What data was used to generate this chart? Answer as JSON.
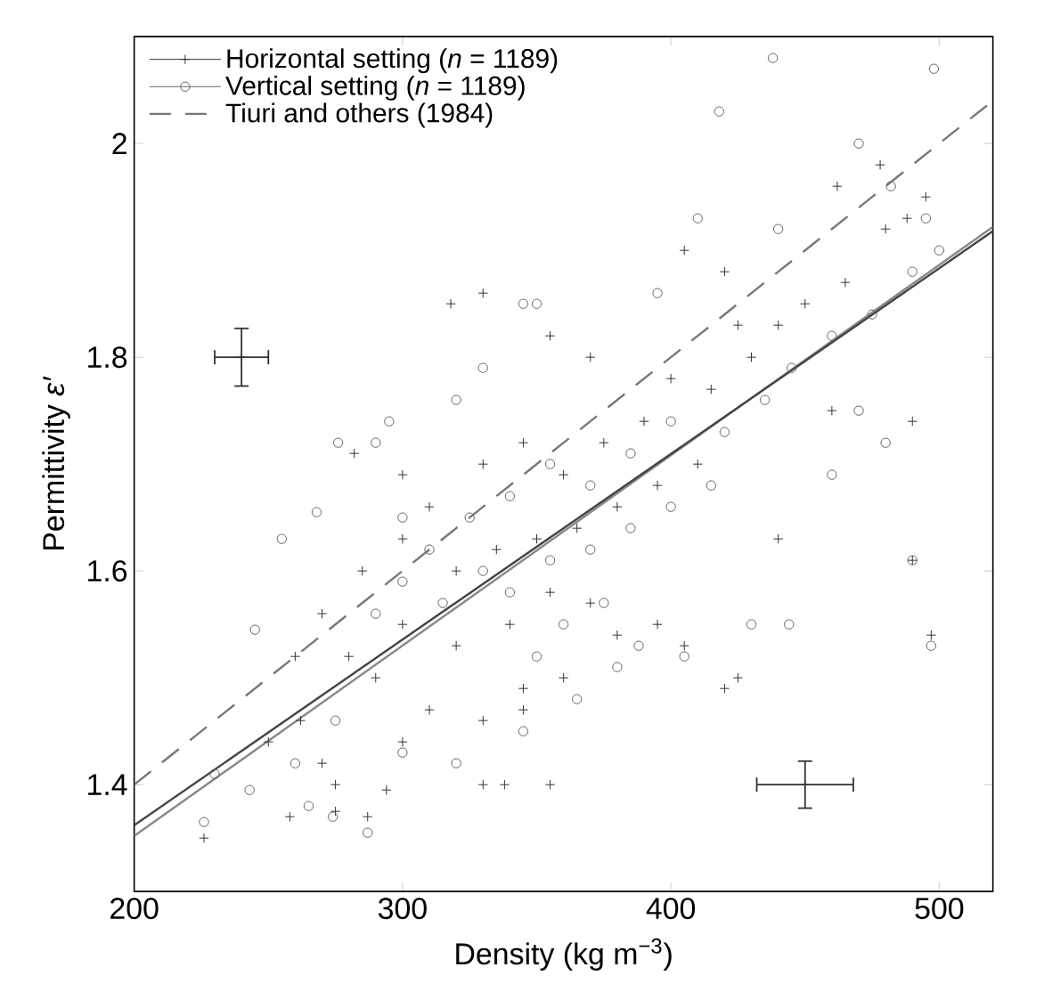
{
  "chart_data": {
    "type": "scatter",
    "xlabel": "Density (kg m$^{−3}$)",
    "ylabel": "Permittivity *ε′*",
    "xlim": [
      200,
      520
    ],
    "ylim": [
      1.3,
      2.1
    ],
    "xticks": [
      200,
      300,
      400,
      500
    ],
    "yticks": [
      1.4,
      1.6,
      1.8,
      2
    ],
    "grid": false,
    "legend": "top left",
    "series": [
      {
        "name": "Horizontal setting (*n* = 1189)",
        "marker": "cross",
        "color": "#333333",
        "x": [
          226,
          258,
          275,
          287,
          294,
          330,
          338,
          275,
          270,
          250,
          262,
          300,
          310,
          330,
          345,
          360,
          290,
          280,
          270,
          300,
          320,
          340,
          355,
          370,
          380,
          395,
          405,
          420,
          425,
          440,
          320,
          335,
          350,
          365,
          380,
          395,
          410,
          300,
          310,
          330,
          345,
          360,
          375,
          390,
          400,
          415,
          430,
          440,
          450,
          465,
          480,
          488,
          495,
          478,
          462,
          420,
          330,
          318,
          370,
          490,
          497,
          490,
          460,
          282,
          300,
          355,
          405,
          425,
          345,
          355,
          285,
          260
        ],
        "values": [
          1.35,
          1.37,
          1.375,
          1.37,
          1.395,
          1.4,
          1.4,
          1.4,
          1.42,
          1.44,
          1.46,
          1.44,
          1.47,
          1.46,
          1.47,
          1.5,
          1.5,
          1.52,
          1.56,
          1.55,
          1.53,
          1.55,
          1.58,
          1.57,
          1.54,
          1.55,
          1.53,
          1.49,
          1.5,
          1.63,
          1.6,
          1.62,
          1.63,
          1.64,
          1.66,
          1.68,
          1.7,
          1.63,
          1.66,
          1.7,
          1.72,
          1.69,
          1.72,
          1.74,
          1.78,
          1.77,
          1.8,
          1.83,
          1.85,
          1.87,
          1.92,
          1.93,
          1.95,
          1.98,
          1.96,
          1.88,
          1.86,
          1.85,
          1.8,
          1.74,
          1.54,
          1.61,
          1.75,
          1.71,
          1.69,
          1.82,
          1.9,
          1.83,
          1.49,
          1.4,
          1.6,
          1.52
        ]
      },
      {
        "name": "Vertical setting (*n* = 1189)",
        "marker": "circle",
        "color": "#666666",
        "x": [
          226,
          265,
          274,
          287,
          243,
          230,
          260,
          275,
          300,
          320,
          345,
          365,
          380,
          388,
          405,
          430,
          444,
          497,
          490,
          268,
          255,
          245,
          290,
          300,
          315,
          330,
          340,
          355,
          370,
          385,
          400,
          415,
          310,
          325,
          340,
          355,
          370,
          385,
          400,
          420,
          435,
          445,
          460,
          475,
          490,
          500,
          495,
          482,
          470,
          438,
          498,
          418,
          410,
          395,
          440,
          320,
          330,
          345,
          350,
          295,
          290,
          276,
          470,
          480,
          460,
          300,
          360,
          375,
          350
        ],
        "values": [
          1.365,
          1.38,
          1.37,
          1.355,
          1.395,
          1.41,
          1.42,
          1.46,
          1.43,
          1.42,
          1.45,
          1.48,
          1.51,
          1.53,
          1.52,
          1.55,
          1.55,
          1.53,
          1.61,
          1.655,
          1.63,
          1.545,
          1.56,
          1.59,
          1.57,
          1.6,
          1.58,
          1.61,
          1.62,
          1.64,
          1.66,
          1.68,
          1.62,
          1.65,
          1.67,
          1.7,
          1.68,
          1.71,
          1.74,
          1.73,
          1.76,
          1.79,
          1.82,
          1.84,
          1.88,
          1.9,
          1.93,
          1.96,
          2.0,
          2.08,
          2.07,
          2.03,
          1.93,
          1.86,
          1.92,
          1.76,
          1.79,
          1.85,
          1.85,
          1.74,
          1.72,
          1.72,
          1.75,
          1.72,
          1.69,
          1.65,
          1.55,
          1.57,
          1.52
        ]
      },
      {
        "type": "line",
        "color": "#888888",
        "x": [
          200,
          520
        ],
        "values": [
          1.352,
          1.922
        ]
      },
      {
        "type": "line",
        "color": "#444444",
        "x": [
          200,
          520
        ],
        "values": [
          1.362,
          1.918
        ]
      },
      {
        "name": "Tiuri and others (1984)",
        "type": "line",
        "line_style": "dashed",
        "color": "#777777",
        "x": [
          200,
          520
        ],
        "values": [
          1.4,
          2.04
        ]
      },
      {
        "marker": "cross",
        "color": "#333333",
        "x": [
          240,
          450
        ],
        "values": [
          1.8,
          1.4
        ],
        "errors": [
          0.027,
          0.022
        ],
        "xerrors": [
          10,
          18
        ]
      }
    ]
  }
}
